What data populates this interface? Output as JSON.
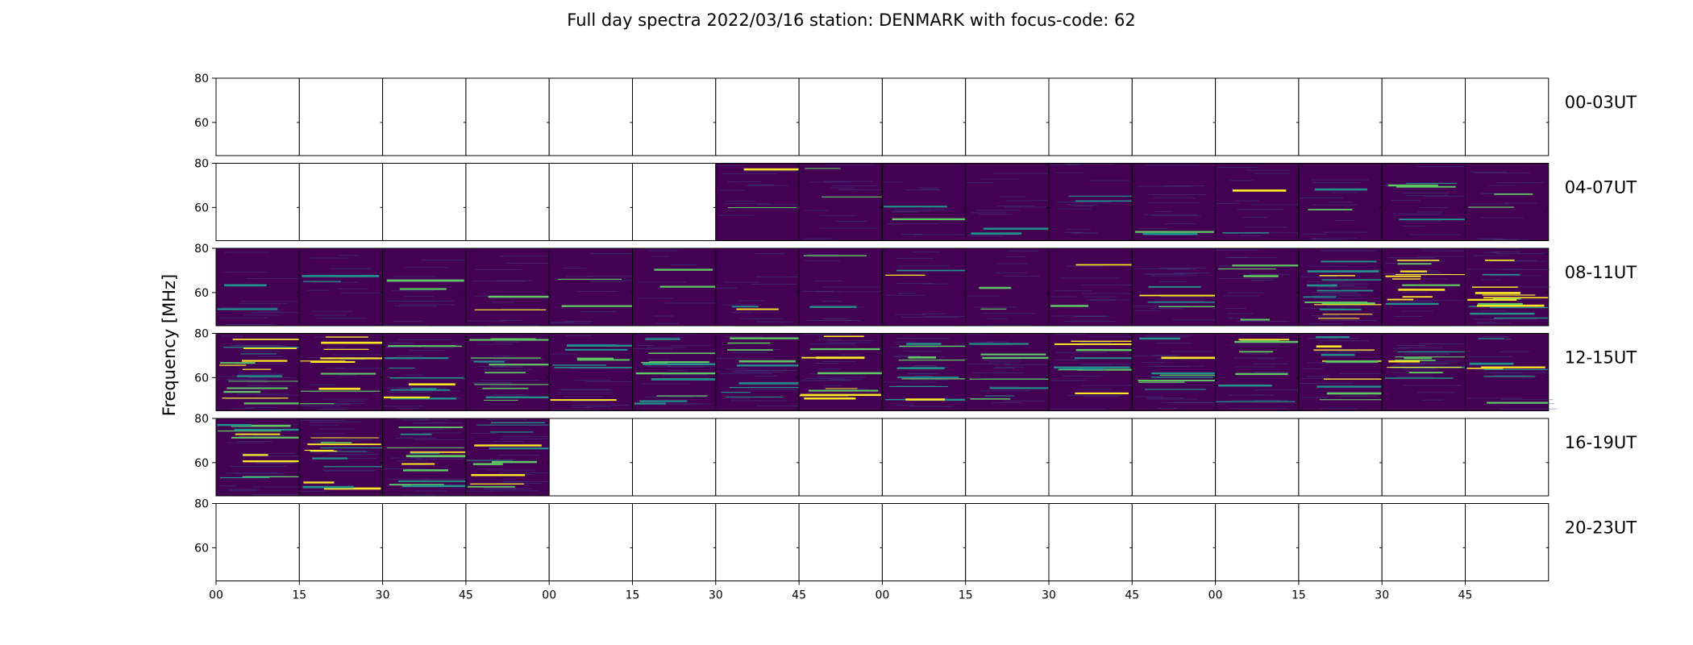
{
  "chart_data": {
    "type": "heatmap",
    "title": "Full day spectra 2022/03/16 station: DENMARK with focus-code: 62",
    "ylabel": "Frequency [MHz]",
    "xlabel": "",
    "ylim": [
      45,
      80
    ],
    "y_ticks": [
      "60",
      "80"
    ],
    "x_ticks": [
      "00",
      "15",
      "30",
      "45",
      "00",
      "15",
      "30",
      "45",
      "00",
      "15",
      "30",
      "45",
      "00",
      "15",
      "30",
      "45"
    ],
    "colormap": [
      "#440154",
      "#3b528b",
      "#21918c",
      "#5ec962",
      "#fde725"
    ],
    "row_labels": [
      "00-03UT",
      "04-07UT",
      "08-11UT",
      "12-15UT",
      "16-19UT",
      "20-23UT"
    ],
    "panels_per_row": 16,
    "availability": [
      [
        0,
        0,
        0,
        0,
        0,
        0,
        0,
        0,
        0,
        0,
        0,
        0,
        0,
        0,
        0,
        0
      ],
      [
        0,
        0,
        0,
        0,
        0,
        0,
        1,
        1,
        1,
        1,
        1,
        1,
        1,
        1,
        1,
        1
      ],
      [
        1,
        1,
        1,
        1,
        1,
        1,
        1,
        1,
        1,
        1,
        1,
        1,
        1,
        1,
        1,
        1
      ],
      [
        1,
        1,
        1,
        1,
        1,
        1,
        1,
        1,
        1,
        1,
        1,
        1,
        1,
        1,
        1,
        1
      ],
      [
        1,
        1,
        1,
        1,
        0,
        0,
        0,
        0,
        0,
        0,
        0,
        0,
        0,
        0,
        0,
        0
      ],
      [
        0,
        0,
        0,
        0,
        0,
        0,
        0,
        0,
        0,
        0,
        0,
        0,
        0,
        0,
        0,
        0
      ]
    ],
    "activity": [
      [
        0,
        0,
        0,
        0,
        0,
        0,
        0,
        0,
        0,
        0,
        0,
        0,
        0,
        0,
        0,
        0
      ],
      [
        0,
        0,
        0,
        0,
        0,
        0,
        0.1,
        0.1,
        0.1,
        0.1,
        0.15,
        0.15,
        0.15,
        0.15,
        0.25,
        0.15
      ],
      [
        0.1,
        0.1,
        0.1,
        0.1,
        0.15,
        0.1,
        0.1,
        0.1,
        0.1,
        0.1,
        0.15,
        0.3,
        0.25,
        0.8,
        0.7,
        0.9
      ],
      [
        0.85,
        0.7,
        0.6,
        0.65,
        0.5,
        0.6,
        0.55,
        0.65,
        0.7,
        0.5,
        0.55,
        0.5,
        0.45,
        0.6,
        0.55,
        0.45
      ],
      [
        0.7,
        0.75,
        0.8,
        0.7,
        0,
        0,
        0,
        0,
        0,
        0,
        0,
        0,
        0,
        0,
        0,
        0
      ],
      [
        0,
        0,
        0,
        0,
        0,
        0,
        0,
        0,
        0,
        0,
        0,
        0,
        0,
        0,
        0,
        0
      ]
    ]
  }
}
